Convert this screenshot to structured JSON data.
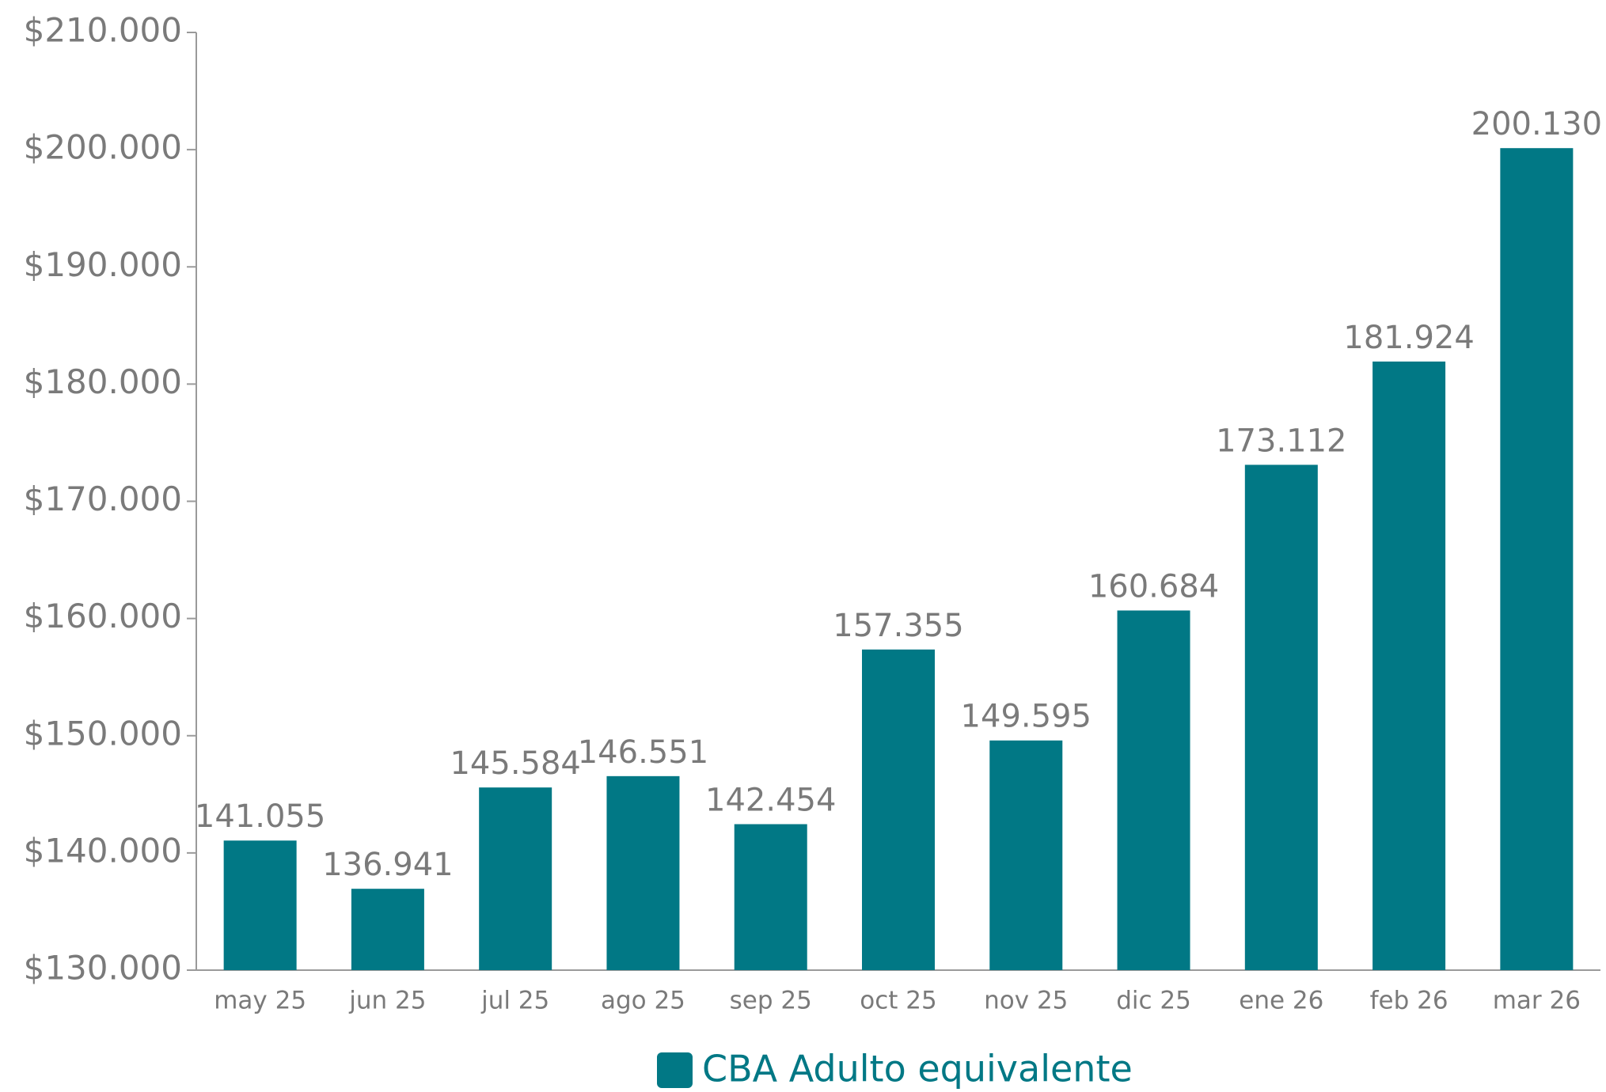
{
  "chart_data": {
    "type": "bar",
    "categories": [
      "may 25",
      "jun 25",
      "jul 25",
      "ago 25",
      "sep 25",
      "oct 25",
      "nov 25",
      "dic 25",
      "ene 26",
      "feb 26",
      "mar 26"
    ],
    "series": [
      {
        "name": "CBA Adulto equivalente",
        "color": "#017885",
        "values": [
          141055,
          136941,
          145584,
          146551,
          142454,
          157355,
          149595,
          160684,
          173112,
          181924,
          200130
        ],
        "value_labels": [
          "141.055",
          "136.941",
          "145.584",
          "146.551",
          "142.454",
          "157.355",
          "149.595",
          "160.684",
          "173.112",
          "181.924",
          "200.130"
        ]
      }
    ],
    "ylim": [
      130000,
      210000
    ],
    "yticks": [
      {
        "value": 130000,
        "label": "$130.000"
      },
      {
        "value": 140000,
        "label": "$140.000"
      },
      {
        "value": 150000,
        "label": "$150.000"
      },
      {
        "value": 160000,
        "label": "$160.000"
      },
      {
        "value": 170000,
        "label": "$170.000"
      },
      {
        "value": 180000,
        "label": "$180.000"
      },
      {
        "value": 190000,
        "label": "$190.000"
      },
      {
        "value": 200000,
        "label": "$200.000"
      },
      {
        "value": 210000,
        "label": "$210.000"
      }
    ],
    "grid": false,
    "legend": "bottom"
  }
}
